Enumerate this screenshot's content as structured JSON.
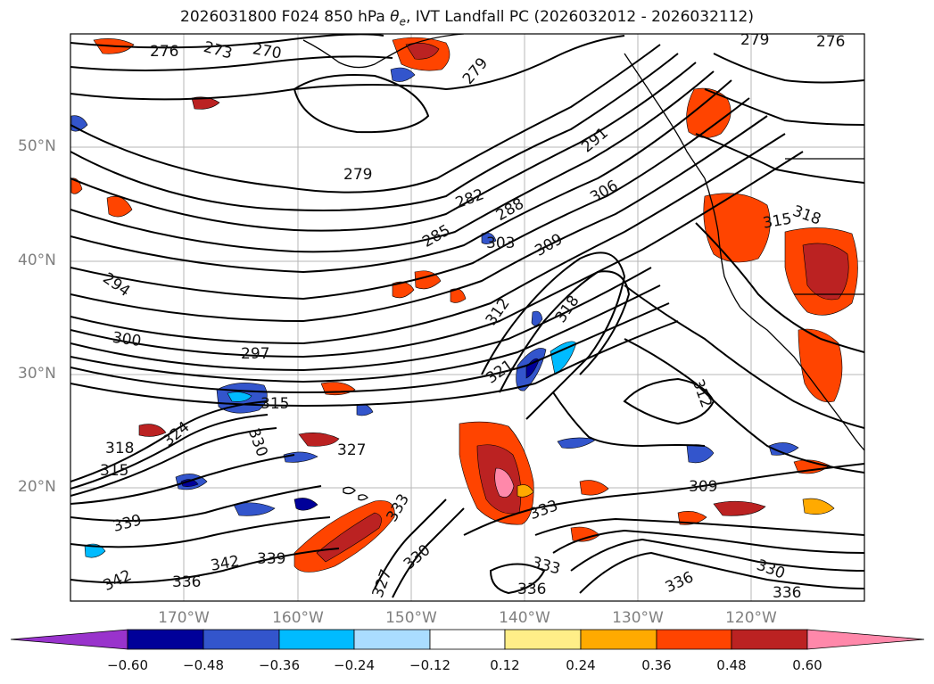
{
  "title_main": "2026031800 F024 850 hPa ",
  "title_symbol": "θ",
  "title_sub": "e",
  "title_rest": ", IVT Landfall PC (2026032012 - 2026032112)",
  "lat_ticks": [
    "50°N",
    "40°N",
    "30°N",
    "20°N"
  ],
  "lon_ticks": [
    "170°W",
    "160°W",
    "150°W",
    "140°W",
    "130°W",
    "120°W"
  ],
  "colorbar": {
    "ticks": [
      "−0.60",
      "−0.48",
      "−0.36",
      "−0.24",
      "−0.12",
      "0.12",
      "0.24",
      "0.36",
      "0.48",
      "0.60"
    ],
    "colors": [
      "#9933cc",
      "#000099",
      "#3355cc",
      "#00bbff",
      "#aaddff",
      "#ffffff",
      "#ffee88",
      "#ffaa00",
      "#ff4400",
      "#bb2222",
      "#ff88aa"
    ]
  },
  "contour_labels": [
    {
      "text": "276"
    },
    {
      "text": "273"
    },
    {
      "text": "270"
    },
    {
      "text": "279"
    },
    {
      "text": "279"
    },
    {
      "text": "276"
    },
    {
      "text": "279"
    },
    {
      "text": "282"
    },
    {
      "text": "285"
    },
    {
      "text": "288"
    },
    {
      "text": "291"
    },
    {
      "text": "294"
    },
    {
      "text": "297"
    },
    {
      "text": "300"
    },
    {
      "text": "303"
    },
    {
      "text": "306"
    },
    {
      "text": "309"
    },
    {
      "text": "312"
    },
    {
      "text": "315"
    },
    {
      "text": "318"
    },
    {
      "text": "321"
    },
    {
      "text": "324"
    },
    {
      "text": "327"
    },
    {
      "text": "330"
    },
    {
      "text": "333"
    },
    {
      "text": "336"
    },
    {
      "text": "336"
    },
    {
      "text": "339"
    },
    {
      "text": "339"
    },
    {
      "text": "342"
    },
    {
      "text": "342"
    },
    {
      "text": "309"
    },
    {
      "text": "312"
    },
    {
      "text": "315"
    },
    {
      "text": "318"
    },
    {
      "text": "330"
    },
    {
      "text": "333"
    },
    {
      "text": "336"
    },
    {
      "text": "336"
    },
    {
      "text": "333"
    },
    {
      "text": "327"
    },
    {
      "text": "330"
    },
    {
      "text": "315"
    },
    {
      "text": "318"
    }
  ]
}
